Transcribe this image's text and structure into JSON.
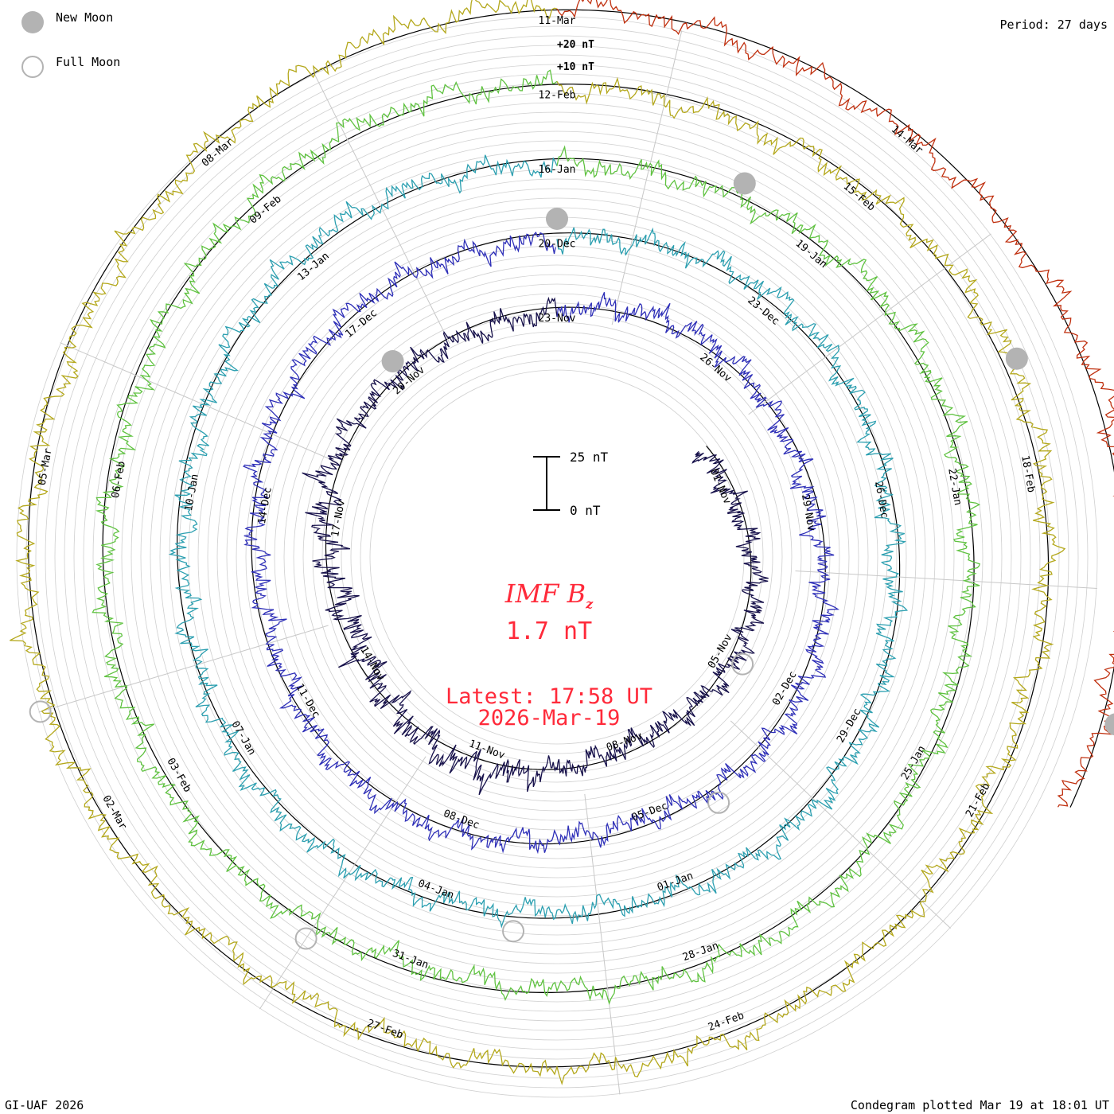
{
  "legend": {
    "new_moon": "New Moon",
    "full_moon": "Full Moon"
  },
  "period": "Period: 27 days",
  "credit": "GI-UAF 2026",
  "plotted": "Condegram plotted Mar 19 at 18:01 UT",
  "center": {
    "title": "IMF B",
    "subscript": "z",
    "value": "1.7 nT",
    "latest_label": "Latest: 17:58 UT",
    "latest_date": "2026-Mar-19",
    "color": "#ff2a3a"
  },
  "chart_data": {
    "type": "line",
    "title": "IMF Bz",
    "period_days": 27,
    "scale_bar": {
      "labels": [
        "25 nT",
        "0 nT"
      ],
      "range_nT": [
        0,
        25
      ]
    },
    "ring_scale": {
      "labels": [
        "+20 nT",
        "+10 nT"
      ]
    },
    "cycles": [
      {
        "start": "2025-10-27",
        "color": "#16104a"
      },
      {
        "start": "2025-11-23",
        "color": "#2e2fb8"
      },
      {
        "start": "2025-12-20",
        "color": "#2b9fb0"
      },
      {
        "start": "2026-01-16",
        "color": "#5fc240"
      },
      {
        "start": "2026-02-12",
        "color": "#b4a81c"
      },
      {
        "start": "2026-03-11",
        "color": "#c0300f"
      }
    ],
    "date_labels": [
      "01-Nov",
      "05-Nov",
      "08-Nov",
      "11-Nov",
      "14-Nov",
      "17-Nov",
      "20-Nov",
      "23-Nov",
      "26-Nov",
      "29-Nov",
      "02-Dec",
      "05-Dec",
      "08-Dec",
      "11-Dec",
      "14-Dec",
      "17-Dec",
      "20-Dec",
      "23-Dec",
      "26-Dec",
      "29-Dec",
      "01-Jan",
      "04-Jan",
      "07-Jan",
      "10-Jan",
      "13-Jan",
      "16-Jan",
      "19-Jan",
      "22-Jan",
      "25-Jan",
      "28-Jan",
      "31-Jan",
      "03-Feb",
      "06-Feb",
      "09-Feb",
      "12-Feb",
      "15-Feb",
      "18-Feb",
      "21-Feb",
      "24-Feb",
      "27-Feb",
      "02-Mar",
      "05-Mar",
      "08-Mar",
      "11-Mar",
      "14-Mar"
    ],
    "new_moons": [
      "2025-11-20",
      "2025-12-20",
      "2026-01-18",
      "2026-02-17",
      "2026-03-19"
    ],
    "full_moons": [
      "2025-11-05",
      "2025-12-04",
      "2026-01-03",
      "2026-02-01",
      "2026-03-03"
    ],
    "latest": {
      "time": "2026-03-19 17:58 UT",
      "value_nT": 1.7
    },
    "grid": true
  }
}
